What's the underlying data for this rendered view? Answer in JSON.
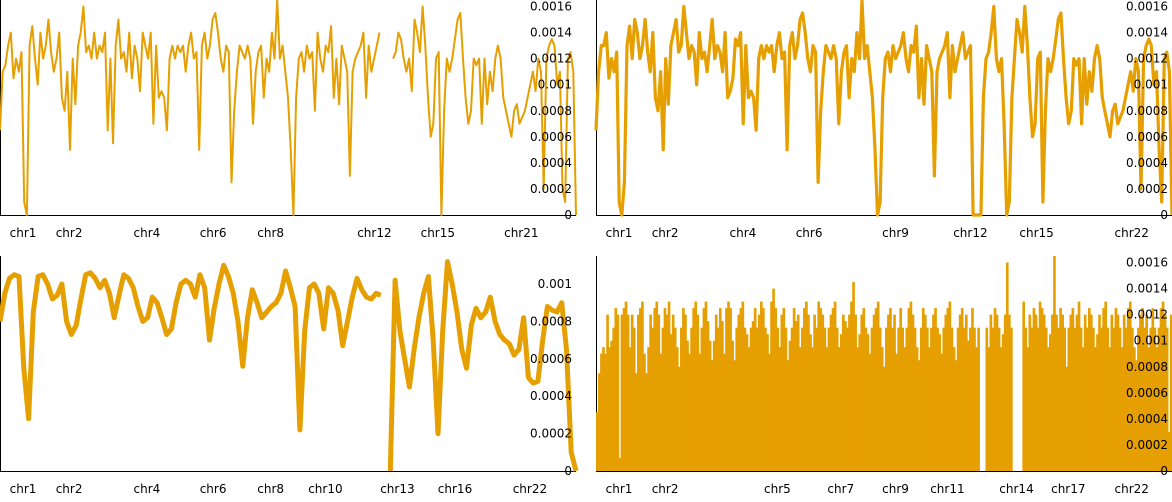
{
  "chart_data": [
    {
      "type": "line",
      "series_color": "#e69f00",
      "ylim": [
        0,
        0.00165
      ],
      "yticks": [
        "0",
        "0.0002",
        "0.0004",
        "0.0006",
        "0.0008",
        "0.001",
        "0.0012",
        "0.0014",
        "0.0016"
      ],
      "xticks": [
        "chr1",
        "chr2",
        "chr4",
        "chr6",
        "chr8",
        "chr12",
        "chr15",
        "chr21"
      ],
      "xtick_positions": [
        0.04,
        0.12,
        0.255,
        0.37,
        0.47,
        0.65,
        0.76,
        0.905
      ],
      "gaps": [
        [
          0.66,
          0.68
        ]
      ],
      "values": [
        0.00065,
        0.0011,
        0.00115,
        0.0013,
        0.0014,
        0.00105,
        0.0012,
        0.0011,
        0.00125,
        0.0001,
        0.0,
        0.0013,
        0.00145,
        0.0012,
        0.001,
        0.0014,
        0.0012,
        0.0013,
        0.0015,
        0.00125,
        0.0011,
        0.0012,
        0.0014,
        0.0009,
        0.0008,
        0.0011,
        0.0005,
        0.0012,
        0.00085,
        0.0013,
        0.0014,
        0.0016,
        0.00125,
        0.0013,
        0.0012,
        0.0014,
        0.0012,
        0.0013,
        0.00125,
        0.0014,
        0.00065,
        0.0012,
        0.00055,
        0.0013,
        0.0015,
        0.0012,
        0.00125,
        0.0011,
        0.0014,
        0.00105,
        0.0013,
        0.0012,
        0.00095,
        0.0014,
        0.0013,
        0.0012,
        0.0014,
        0.0007,
        0.0013,
        0.0009,
        0.00095,
        0.0009,
        0.00065,
        0.0012,
        0.0013,
        0.0012,
        0.0013,
        0.00125,
        0.0013,
        0.0011,
        0.0013,
        0.0014,
        0.0012,
        0.00125,
        0.0005,
        0.0013,
        0.0014,
        0.0012,
        0.0013,
        0.0015,
        0.00155,
        0.0014,
        0.0012,
        0.0011,
        0.0013,
        0.00125,
        0.00025,
        0.0008,
        0.0011,
        0.0013,
        0.00125,
        0.0012,
        0.0013,
        0.0012,
        0.0007,
        0.0011,
        0.00125,
        0.0013,
        0.0009,
        0.0012,
        0.0011,
        0.0014,
        0.0012,
        0.00165,
        0.0012,
        0.0013,
        0.0011,
        0.0009,
        0.0005,
        0.0,
        0.0009,
        0.0012,
        0.00125,
        0.0011,
        0.0013,
        0.0012,
        0.00125,
        0.0008,
        0.0014,
        0.0012,
        0.0011,
        0.0013,
        0.00125,
        0.00145,
        0.0009,
        0.0012,
        0.00085,
        0.0013,
        0.0012,
        0.0011,
        0.0003,
        0.0011,
        0.0012,
        0.00125,
        0.0013,
        0.0014,
        0.0009,
        0.0013,
        0.0011,
        0.0012,
        0.0013,
        0.0014,
        0.0012,
        0.00125,
        0.0013,
        0.00095,
        0.0012,
        0.00125,
        0.0014,
        0.00135,
        0.0012,
        0.0011,
        0.0012,
        0.00095,
        0.0015,
        0.0014,
        0.00125,
        0.0016,
        0.0013,
        0.0009,
        0.0006,
        0.0007,
        0.0012,
        0.00125,
        0.0,
        0.0008,
        0.0012,
        0.0011,
        0.0012,
        0.00135,
        0.0015,
        0.00155,
        0.0012,
        0.0009,
        0.0007,
        0.0008,
        0.0012,
        0.00115,
        0.0012,
        0.0007,
        0.0012,
        0.00085,
        0.0011,
        0.00095,
        0.0012,
        0.0013,
        0.0012,
        0.0009,
        0.0008,
        0.0007,
        0.0006,
        0.0008,
        0.00085,
        0.0007,
        0.00075,
        0.0008,
        0.0009,
        0.001,
        0.0011,
        0.00095,
        0.0012,
        0.0011,
        0.0002,
        0.0012,
        0.0013,
        0.00135,
        0.0013,
        0.001,
        0.0011,
        0.0002,
        0.0001,
        0.0012,
        0.00125,
        0.0011,
        0.0
      ]
    },
    {
      "type": "line",
      "series_color": "#e69f00",
      "ylim": [
        0,
        0.00165
      ],
      "yticks": [
        "0",
        "0.0002",
        "0.0004",
        "0.0006",
        "0.0008",
        "0.001",
        "0.0012",
        "0.0014",
        "0.0016"
      ],
      "xticks": [
        "chr1",
        "chr2",
        "chr4",
        "chr6",
        "chr9",
        "chr12",
        "chr15",
        "chr22"
      ],
      "xtick_positions": [
        0.04,
        0.12,
        0.255,
        0.37,
        0.52,
        0.65,
        0.765,
        0.93
      ],
      "gaps": [],
      "values": [
        0.00065,
        0.0011,
        0.0013,
        0.0013,
        0.0014,
        0.00105,
        0.0012,
        0.0011,
        0.00125,
        0.0001,
        0.0,
        0.00025,
        0.0013,
        0.00145,
        0.0012,
        0.0015,
        0.0014,
        0.0012,
        0.0013,
        0.0015,
        0.00125,
        0.0011,
        0.0014,
        0.0009,
        0.0008,
        0.0011,
        0.0005,
        0.0012,
        0.00085,
        0.0013,
        0.0014,
        0.0015,
        0.00125,
        0.0013,
        0.0016,
        0.0014,
        0.0012,
        0.0013,
        0.00125,
        0.001,
        0.0014,
        0.0012,
        0.00125,
        0.0011,
        0.0013,
        0.0015,
        0.0012,
        0.0013,
        0.00125,
        0.0011,
        0.0014,
        0.0009,
        0.00095,
        0.00105,
        0.00135,
        0.0013,
        0.0014,
        0.0007,
        0.0013,
        0.0009,
        0.00095,
        0.0009,
        0.00065,
        0.0012,
        0.0013,
        0.0012,
        0.0013,
        0.00125,
        0.0013,
        0.0011,
        0.0013,
        0.0014,
        0.0012,
        0.00125,
        0.0005,
        0.0013,
        0.0014,
        0.0012,
        0.0013,
        0.0015,
        0.00155,
        0.0014,
        0.0012,
        0.0011,
        0.0013,
        0.00125,
        0.00025,
        0.0008,
        0.0011,
        0.0013,
        0.00125,
        0.0012,
        0.0013,
        0.0012,
        0.0007,
        0.0011,
        0.00125,
        0.0013,
        0.0009,
        0.0012,
        0.0011,
        0.0014,
        0.0012,
        0.00165,
        0.0012,
        0.0013,
        0.0011,
        0.0009,
        0.0005,
        0.0,
        0.0001,
        0.0009,
        0.0012,
        0.00125,
        0.0011,
        0.0013,
        0.0012,
        0.00125,
        0.0013,
        0.0014,
        0.0012,
        0.0011,
        0.0013,
        0.00125,
        0.00145,
        0.0009,
        0.0012,
        0.00085,
        0.0013,
        0.0012,
        0.0011,
        0.0003,
        0.0011,
        0.0012,
        0.00125,
        0.0013,
        0.0014,
        0.0009,
        0.0013,
        0.0011,
        0.0012,
        0.0013,
        0.0014,
        0.0012,
        0.00125,
        0.0013,
        0.0,
        0.0,
        0.0,
        0.0,
        0.0009,
        0.0012,
        0.00125,
        0.0014,
        0.0016,
        0.0012,
        0.0011,
        0.0012,
        0.0007,
        0.0,
        0.0001,
        0.0009,
        0.0012,
        0.0015,
        0.0014,
        0.00125,
        0.0016,
        0.0013,
        0.0009,
        0.0006,
        0.0007,
        0.0012,
        0.00125,
        0.0001,
        0.0008,
        0.0012,
        0.0011,
        0.0012,
        0.00135,
        0.0015,
        0.00155,
        0.0012,
        0.0009,
        0.0007,
        0.0008,
        0.0012,
        0.00115,
        0.0012,
        0.0007,
        0.0012,
        0.00085,
        0.0011,
        0.00095,
        0.0012,
        0.0013,
        0.0012,
        0.0009,
        0.0008,
        0.0007,
        0.0006,
        0.0008,
        0.00085,
        0.0007,
        0.00075,
        0.0008,
        0.0009,
        0.001,
        0.0011,
        0.00095,
        0.0012,
        0.0011,
        0.0002,
        0.0012,
        0.0013,
        0.00135,
        0.0013,
        0.001,
        0.0011,
        0.0005,
        0.0001,
        0.0012,
        0.00125,
        0.0011,
        0.0
      ]
    },
    {
      "type": "line",
      "series_color": "#e69f00",
      "ylim": [
        0,
        0.00115
      ],
      "yticks": [
        "0",
        "0.0002",
        "0.0004",
        "0.0006",
        "0.0008",
        "0.001"
      ],
      "xticks": [
        "chr1",
        "chr2",
        "chr4",
        "chr6",
        "chr8",
        "chr10",
        "chr13",
        "chr16",
        "chr22"
      ],
      "xtick_positions": [
        0.04,
        0.12,
        0.255,
        0.37,
        0.47,
        0.565,
        0.69,
        0.79,
        0.92
      ],
      "gaps": [
        [
          0.665,
          0.675
        ]
      ],
      "values": [
        0.0008,
        0.00095,
        0.00103,
        0.00105,
        0.00104,
        0.00055,
        0.00028,
        0.00085,
        0.00104,
        0.00105,
        0.001,
        0.00092,
        0.00094,
        0.001,
        0.0008,
        0.00073,
        0.00078,
        0.00092,
        0.00105,
        0.00106,
        0.00103,
        0.00098,
        0.00102,
        0.00095,
        0.00082,
        0.00094,
        0.00105,
        0.00103,
        0.00098,
        0.00088,
        0.0008,
        0.00082,
        0.00093,
        0.0009,
        0.00082,
        0.00073,
        0.00076,
        0.0009,
        0.001,
        0.00102,
        0.001,
        0.00093,
        0.00105,
        0.00098,
        0.0007,
        0.00087,
        0.001,
        0.0011,
        0.00104,
        0.00095,
        0.0008,
        0.00056,
        0.00082,
        0.00097,
        0.0009,
        0.00082,
        0.00085,
        0.00088,
        0.0009,
        0.00095,
        0.00107,
        0.00098,
        0.00088,
        0.00022,
        0.00075,
        0.00098,
        0.001,
        0.00095,
        0.00076,
        0.00098,
        0.00095,
        0.00086,
        0.00067,
        0.0008,
        0.00093,
        0.00103,
        0.00097,
        0.00093,
        0.00092,
        0.00095,
        0.00094,
        0.00095,
        0.0,
        0.00102,
        0.00075,
        0.0006,
        0.00045,
        0.00065,
        0.00082,
        0.00095,
        0.00104,
        0.0007,
        0.0002,
        0.00075,
        0.00112,
        0.001,
        0.00085,
        0.00065,
        0.00055,
        0.00078,
        0.00087,
        0.00082,
        0.00085,
        0.00093,
        0.0008,
        0.00073,
        0.0007,
        0.00068,
        0.00062,
        0.00065,
        0.00082,
        0.0005,
        0.00047,
        0.00048,
        0.0007,
        0.00088,
        0.00086,
        0.00085,
        0.0009,
        0.00065,
        0.0001,
        0.0
      ]
    },
    {
      "type": "bar",
      "series_color": "#e69f00",
      "ylim": [
        0,
        0.00165
      ],
      "yticks": [
        "0",
        "0.0002",
        "0.0004",
        "0.0006",
        "0.0008",
        "0.001",
        "0.0012",
        "0.0014",
        "0.0016"
      ],
      "xticks": [
        "chr1",
        "chr2",
        "chr5",
        "chr7",
        "chr9",
        "chr11",
        "chr14",
        "chr17",
        "chr22"
      ],
      "xtick_positions": [
        0.04,
        0.12,
        0.315,
        0.425,
        0.52,
        0.61,
        0.73,
        0.82,
        0.93
      ],
      "gaps": [
        [
          0.665,
          0.675
        ]
      ],
      "values": [
        0.00045,
        0.00075,
        0.0009,
        0.00095,
        0.0009,
        0.0012,
        0.00095,
        0.001,
        0.0011,
        0.00125,
        0.0012,
        0.0001,
        0.0012,
        0.00125,
        0.0013,
        0.0012,
        0.00095,
        0.0012,
        0.0011,
        0.00075,
        0.0012,
        0.00125,
        0.0013,
        0.0009,
        0.00075,
        0.00095,
        0.0012,
        0.0011,
        0.00125,
        0.0013,
        0.0012,
        0.0009,
        0.0011,
        0.00125,
        0.0012,
        0.0013,
        0.00105,
        0.0012,
        0.0011,
        0.00095,
        0.0008,
        0.0011,
        0.00125,
        0.0012,
        0.001,
        0.0009,
        0.0011,
        0.00125,
        0.0013,
        0.0012,
        0.0009,
        0.0011,
        0.00125,
        0.0013,
        0.00115,
        0.001,
        0.00085,
        0.001,
        0.0012,
        0.0011,
        0.00125,
        0.00115,
        0.0009,
        0.00125,
        0.0013,
        0.00125,
        0.001,
        0.00085,
        0.0011,
        0.0012,
        0.00125,
        0.0013,
        0.0011,
        0.00105,
        0.00095,
        0.0011,
        0.00115,
        0.00125,
        0.0011,
        0.0012,
        0.0013,
        0.00125,
        0.0011,
        0.00105,
        0.0009,
        0.0013,
        0.0014,
        0.00125,
        0.0011,
        0.00095,
        0.0012,
        0.00125,
        0.0011,
        0.00085,
        0.001,
        0.0011,
        0.00125,
        0.00115,
        0.0012,
        0.00095,
        0.0011,
        0.00125,
        0.0013,
        0.0012,
        0.00105,
        0.00095,
        0.0012,
        0.0011,
        0.0013,
        0.00125,
        0.0012,
        0.0011,
        0.00095,
        0.0011,
        0.0012,
        0.00125,
        0.0013,
        0.0011,
        0.00095,
        0.00105,
        0.0012,
        0.00115,
        0.0011,
        0.0012,
        0.0013,
        0.00145,
        0.0012,
        0.00095,
        0.00105,
        0.0012,
        0.00125,
        0.0011,
        0.00105,
        0.0009,
        0.0011,
        0.0012,
        0.00125,
        0.0013,
        0.0011,
        0.00095,
        0.0008,
        0.0011,
        0.0012,
        0.00125,
        0.0011,
        0.0012,
        0.0009,
        0.0011,
        0.00125,
        0.0011,
        0.00095,
        0.0011,
        0.00125,
        0.0013,
        0.0012,
        0.0011,
        0.00095,
        0.00085,
        0.0011,
        0.00125,
        0.0012,
        0.0011,
        0.00095,
        0.0011,
        0.0012,
        0.00125,
        0.0011,
        0.00105,
        0.0009,
        0.0011,
        0.0012,
        0.00125,
        0.0013,
        0.0011,
        0.00095,
        0.00085,
        0.0011,
        0.0012,
        0.00125,
        0.0011,
        0.0012,
        0.001,
        0.0011,
        0.00125,
        0.0011,
        0.00095,
        0.0011,
        0.00125,
        0.0013,
        0.0012,
        0.0011,
        0.00095,
        0.0012,
        0.0011,
        0.00125,
        0.0012,
        0.0011,
        0.00095,
        0.00105,
        0.0012,
        0.0016,
        0.0012,
        0.0011,
        0.0,
        0.0,
        0.0,
        0.0,
        0.0,
        0.0013,
        0.0011,
        0.00095,
        0.0012,
        0.0011,
        0.00125,
        0.0012,
        0.0011,
        0.0013,
        0.00125,
        0.0012,
        0.0011,
        0.00095,
        0.00105,
        0.0012,
        0.00165,
        0.0012,
        0.0011,
        0.00125,
        0.0012,
        0.0011,
        0.0008,
        0.0011,
        0.0012,
        0.00125,
        0.0011,
        0.0012,
        0.0013,
        0.0011,
        0.00095,
        0.0012,
        0.0011,
        0.00125,
        0.0012,
        0.0011,
        0.00095,
        0.00105,
        0.0012,
        0.0011,
        0.00125,
        0.0013,
        0.0011,
        0.00095,
        0.0012,
        0.0011,
        0.00125,
        0.0012,
        0.0011,
        0.00095,
        0.0012,
        0.0011,
        0.00125,
        0.0013,
        0.0011,
        0.00095,
        0.00085,
        0.0011,
        0.0012,
        0.00125,
        0.0011,
        0.0012,
        0.00095,
        0.0011,
        0.00125,
        0.0011,
        0.00095,
        0.0011,
        0.00125,
        0.0013,
        0.0012,
        0.0011,
        0.0003,
        0.0012
      ]
    }
  ]
}
